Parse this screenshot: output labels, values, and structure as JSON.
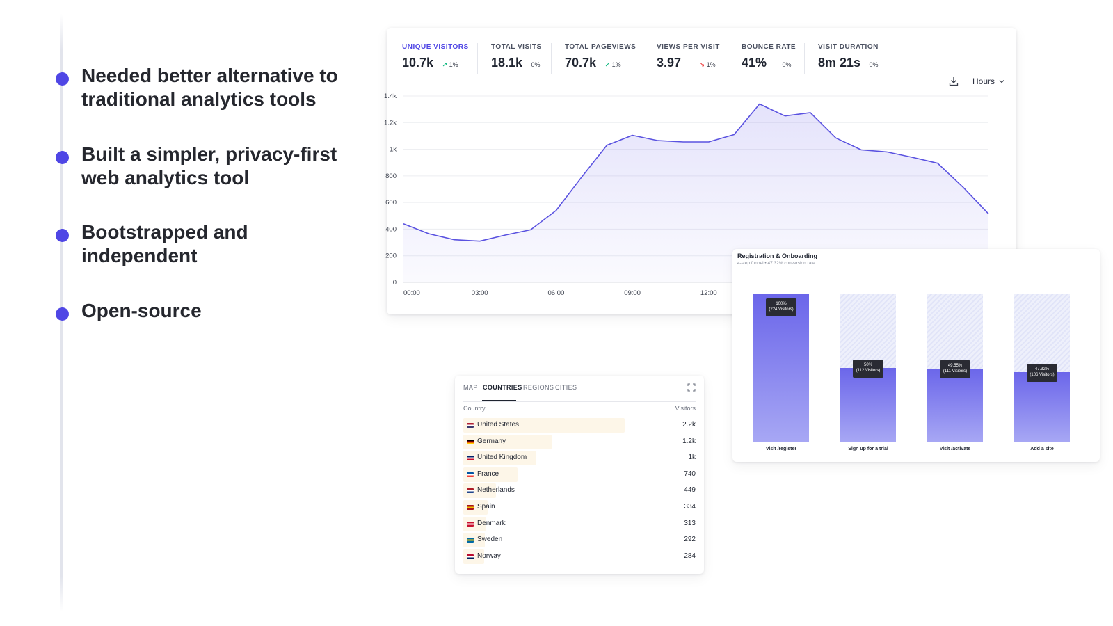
{
  "bullets": [
    {
      "text": "Needed better alternative to traditional analytics tools"
    },
    {
      "text": "Built a simpler, privacy-first web analytics tool"
    },
    {
      "text": "Bootstrapped and independent"
    },
    {
      "text": "Open-source"
    }
  ],
  "metrics": [
    {
      "label": "UNIQUE VISITORS",
      "value": "10.7k",
      "change": "1%",
      "trend": "up",
      "active": true
    },
    {
      "label": "TOTAL VISITS",
      "value": "18.1k",
      "change": "0%",
      "trend": "none",
      "active": false
    },
    {
      "label": "TOTAL PAGEVIEWS",
      "value": "70.7k",
      "change": "1%",
      "trend": "up",
      "active": false
    },
    {
      "label": "VIEWS PER VISIT",
      "value": "3.97",
      "change": "1%",
      "trend": "down",
      "active": false
    },
    {
      "label": "BOUNCE RATE",
      "value": "41%",
      "change": "0%",
      "trend": "none",
      "active": false
    },
    {
      "label": "VISIT DURATION",
      "value": "8m 21s",
      "change": "0%",
      "trend": "none",
      "active": false
    }
  ],
  "toolbar": {
    "interval_label": "Hours",
    "download_icon": "download-icon",
    "chevron_icon": "chevron-down-icon"
  },
  "colors": {
    "accent": "#4f46e5",
    "trend_up": "#10b981",
    "trend_down": "#ef4444",
    "country_bar": "#fdf6e8"
  },
  "chart_data": {
    "type": "line",
    "ylim": [
      0,
      1400
    ],
    "y_ticks": [
      0,
      200,
      400,
      600,
      800,
      1000,
      1200,
      1400
    ],
    "y_tick_labels": [
      "0",
      "200",
      "400",
      "600",
      "800",
      "1k",
      "1.2k",
      "1.4k"
    ],
    "x_tick_hours": [
      0,
      3,
      6,
      9,
      12
    ],
    "x_tick_labels": [
      "00:00",
      "03:00",
      "06:00",
      "09:00",
      "12:00"
    ],
    "x_hours": [
      0,
      1,
      2,
      3,
      4,
      5,
      6,
      7,
      8,
      9,
      10,
      11,
      12,
      13,
      14,
      15,
      16,
      17,
      18,
      19,
      20,
      21,
      22,
      23
    ],
    "values": [
      440,
      365,
      320,
      310,
      355,
      395,
      540,
      790,
      1030,
      1105,
      1065,
      1055,
      1055,
      1110,
      1340,
      1250,
      1275,
      1085,
      995,
      980,
      940,
      895,
      715,
      515
    ],
    "grid": true,
    "area_fill": true
  },
  "countries": {
    "tabs": [
      "MAP",
      "COUNTRIES",
      "REGIONS",
      "CITIES"
    ],
    "active_tab": "COUNTRIES",
    "col_country": "Country",
    "col_visitors": "Visitors",
    "rows": [
      {
        "name": "United States",
        "value": "2.2k",
        "visitors": 2200,
        "flag": [
          "#b22234",
          "#ffffff",
          "#3c3b6e"
        ]
      },
      {
        "name": "Germany",
        "value": "1.2k",
        "visitors": 1200,
        "flag": [
          "#000000",
          "#dd0000",
          "#ffce00"
        ]
      },
      {
        "name": "United Kingdom",
        "value": "1k",
        "visitors": 1000,
        "flag": [
          "#012169",
          "#ffffff",
          "#c8102e"
        ]
      },
      {
        "name": "France",
        "value": "740",
        "visitors": 740,
        "flag": [
          "#0055a4",
          "#ffffff",
          "#ef4135"
        ]
      },
      {
        "name": "Netherlands",
        "value": "449",
        "visitors": 449,
        "flag": [
          "#ae1c28",
          "#ffffff",
          "#21468b"
        ]
      },
      {
        "name": "Spain",
        "value": "334",
        "visitors": 334,
        "flag": [
          "#aa151b",
          "#f1bf00",
          "#aa151b"
        ]
      },
      {
        "name": "Denmark",
        "value": "313",
        "visitors": 313,
        "flag": [
          "#c8102e",
          "#ffffff",
          "#c8102e"
        ]
      },
      {
        "name": "Sweden",
        "value": "292",
        "visitors": 292,
        "flag": [
          "#006aa7",
          "#fecc00",
          "#006aa7"
        ]
      },
      {
        "name": "Norway",
        "value": "284",
        "visitors": 284,
        "flag": [
          "#ba0c2f",
          "#ffffff",
          "#00205b"
        ]
      }
    ]
  },
  "funnel": {
    "title": "Registration & Onboarding",
    "subtitle": "4-step funnel • 47.32% conversion rate",
    "steps": [
      {
        "label": "Visit /register",
        "percent_text": "100%",
        "visitors_text": "(224 Visitors)",
        "fraction": 1.0
      },
      {
        "label": "Sign up for a trial",
        "percent_text": "50%",
        "visitors_text": "(112 Visitors)",
        "fraction": 0.5
      },
      {
        "label": "Visit /activate",
        "percent_text": "49.55%",
        "visitors_text": "(111 Visitors)",
        "fraction": 0.4955
      },
      {
        "label": "Add a site",
        "percent_text": "47.32%",
        "visitors_text": "(106 Visitors)",
        "fraction": 0.4732
      }
    ]
  }
}
